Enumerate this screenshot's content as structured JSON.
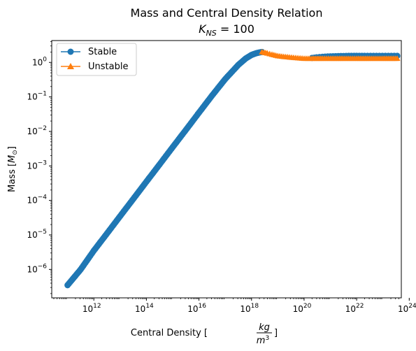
{
  "chart_data": {
    "type": "scatter",
    "title_line1": "Mass and Central Density Relation",
    "title_line2_prefix": "K",
    "title_line2_sub": "NS",
    "title_line2_suffix": " =  100",
    "xlabel_prefix": "Central Density [",
    "xlabel_frac_num": "kg",
    "xlabel_frac_den_base": "m",
    "xlabel_frac_den_exp": "3",
    "xlabel_suffix": "]",
    "ylabel_prefix": "Mass [",
    "ylabel_M": "M",
    "ylabel_sub": "⊙",
    "ylabel_suffix": "]",
    "x_scale": "log",
    "y_scale": "log",
    "xlim": [
      25000000000.0,
      5e+23
    ],
    "ylim": [
      1.5e-07,
      4.3
    ],
    "x_ticks": [
      {
        "value": 1000000000000.0,
        "base": "10",
        "exp": "12"
      },
      {
        "value": 100000000000000.0,
        "base": "10",
        "exp": "14"
      },
      {
        "value": 1e+16,
        "base": "10",
        "exp": "16"
      },
      {
        "value": 1e+18,
        "base": "10",
        "exp": "18"
      },
      {
        "value": 1e+20,
        "base": "10",
        "exp": "20"
      },
      {
        "value": 1e+22,
        "base": "10",
        "exp": "22"
      },
      {
        "value": 1e+24,
        "base": "10",
        "exp": "24"
      }
    ],
    "y_ticks": [
      {
        "value": 1e-06,
        "base": "10",
        "exp": "−6"
      },
      {
        "value": 1e-05,
        "base": "10",
        "exp": "−5"
      },
      {
        "value": 0.0001,
        "base": "10",
        "exp": "−4"
      },
      {
        "value": 0.001,
        "base": "10",
        "exp": "−3"
      },
      {
        "value": 0.01,
        "base": "10",
        "exp": "−2"
      },
      {
        "value": 0.1,
        "base": "10",
        "exp": "−1"
      },
      {
        "value": 1,
        "base": "10",
        "exp": "0"
      }
    ],
    "legend_position": "upper-left",
    "series": [
      {
        "name": "Stable",
        "color": "#1f77b4",
        "marker": "circle",
        "x": [
          100000000000.0,
          316000000000.0,
          1000000000000.0,
          3160000000000.0,
          10000000000000.0,
          31600000000000.0,
          100000000000000.0,
          316000000000000.0,
          1000000000000000.0,
          3160000000000000.0,
          1e+16,
          3.16e+16,
          1e+17,
          3.16e+17,
          6e+17,
          1e+18,
          1.5e+18,
          2e+18,
          2.5e+18,
          2e+20,
          3e+20,
          5e+20,
          1e+21,
          2e+21,
          5e+21,
          1e+22,
          2e+22,
          3.5e+23
        ],
        "y": [
          3.5e-07,
          1e-06,
          3.5e-06,
          1.1e-05,
          3.5e-05,
          0.00011,
          0.00035,
          0.0011,
          0.0035,
          0.011,
          0.035,
          0.11,
          0.33,
          0.85,
          1.3,
          1.65,
          1.85,
          1.95,
          2.0,
          1.35,
          1.4,
          1.45,
          1.5,
          1.52,
          1.55,
          1.55,
          1.55,
          1.55
        ]
      },
      {
        "name": "Unstable",
        "color": "#ff7f0e",
        "marker": "triangle",
        "x": [
          2.5e+18,
          3e+18,
          4e+18,
          6e+18,
          1e+19,
          2e+19,
          4e+19,
          7e+19,
          1e+20,
          2e+20,
          5e+20,
          1e+21,
          3e+21,
          1e+22,
          3e+22,
          1e+23,
          3.5e+23
        ],
        "y": [
          2.0,
          1.95,
          1.85,
          1.7,
          1.55,
          1.45,
          1.38,
          1.33,
          1.3,
          1.3,
          1.3,
          1.3,
          1.3,
          1.3,
          1.3,
          1.3,
          1.3
        ]
      }
    ]
  }
}
